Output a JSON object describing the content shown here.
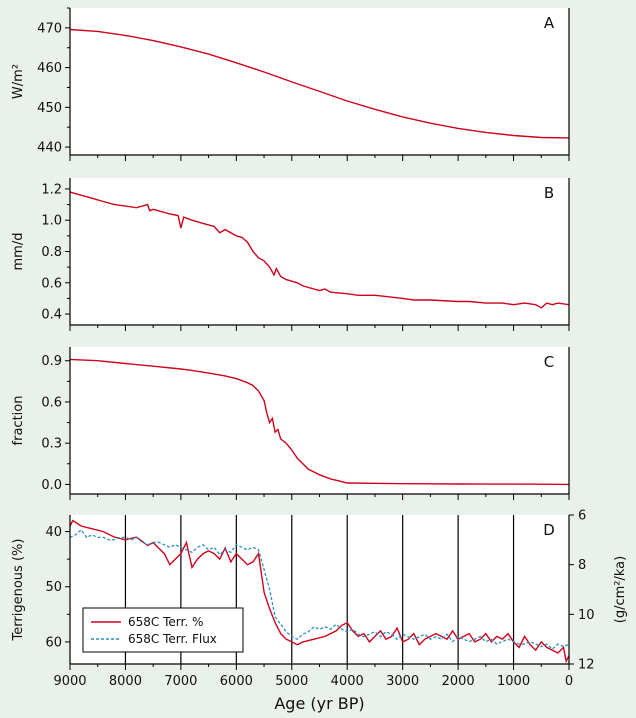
{
  "chart_data": [
    {
      "type": "line",
      "panel": "A",
      "ylabel": "W/m²",
      "ylim": [
        438,
        475
      ],
      "yticks": [
        440,
        450,
        460,
        470
      ],
      "xlim": [
        9000,
        0
      ],
      "series": [
        {
          "color": "#d0021b",
          "x": [
            9000,
            8500,
            8000,
            7500,
            7000,
            6500,
            6000,
            5500,
            5000,
            4500,
            4000,
            3500,
            3000,
            2500,
            2000,
            1500,
            1000,
            500,
            0
          ],
          "y": [
            469.6,
            469.1,
            468.1,
            466.8,
            465.2,
            463.4,
            461.2,
            458.9,
            456.4,
            454.0,
            451.6,
            449.5,
            447.6,
            446.0,
            444.7,
            443.7,
            442.9,
            442.4,
            442.3
          ]
        }
      ]
    },
    {
      "type": "line",
      "panel": "B",
      "ylabel": "mm/d",
      "ylim": [
        0.33,
        1.27
      ],
      "yticks": [
        0.4,
        0.6,
        0.8,
        1.0,
        1.2
      ],
      "ytick_labels": [
        "0.4",
        "0.6",
        "0.8",
        "1.0",
        "1.2"
      ],
      "xlim": [
        9000,
        0
      ],
      "series": [
        {
          "color": "#d0021b",
          "x": [
            9000,
            8800,
            8600,
            8400,
            8200,
            8000,
            7800,
            7600,
            7560,
            7500,
            7400,
            7200,
            7050,
            7000,
            6950,
            6800,
            6600,
            6400,
            6300,
            6200,
            6000,
            5900,
            5800,
            5700,
            5600,
            5500,
            5400,
            5320,
            5280,
            5200,
            5100,
            5000,
            4900,
            4800,
            4700,
            4600,
            4500,
            4400,
            4300,
            4000,
            3800,
            3500,
            3000,
            2800,
            2500,
            2000,
            1800,
            1500,
            1200,
            1000,
            800,
            600,
            500,
            400,
            300,
            200,
            0
          ],
          "y": [
            1.18,
            1.16,
            1.14,
            1.12,
            1.1,
            1.09,
            1.08,
            1.1,
            1.06,
            1.07,
            1.06,
            1.04,
            1.03,
            0.95,
            1.02,
            1.0,
            0.98,
            0.96,
            0.92,
            0.94,
            0.9,
            0.89,
            0.86,
            0.8,
            0.76,
            0.74,
            0.7,
            0.65,
            0.69,
            0.64,
            0.62,
            0.61,
            0.6,
            0.58,
            0.57,
            0.56,
            0.55,
            0.56,
            0.54,
            0.53,
            0.52,
            0.52,
            0.5,
            0.49,
            0.49,
            0.48,
            0.48,
            0.47,
            0.47,
            0.46,
            0.47,
            0.46,
            0.44,
            0.47,
            0.46,
            0.47,
            0.46
          ]
        }
      ]
    },
    {
      "type": "line",
      "panel": "C",
      "ylabel": "fraction",
      "ylim": [
        -0.07,
        1.0
      ],
      "yticks": [
        0.0,
        0.3,
        0.6,
        0.9
      ],
      "ytick_labels": [
        "0.0",
        "0.3",
        "0.6",
        "0.9"
      ],
      "xlim": [
        9000,
        0
      ],
      "series": [
        {
          "color": "#d0021b",
          "x": [
            9000,
            8500,
            8000,
            7500,
            7000,
            6800,
            6500,
            6200,
            6000,
            5800,
            5700,
            5600,
            5500,
            5450,
            5400,
            5350,
            5300,
            5250,
            5200,
            5100,
            5000,
            4900,
            4800,
            4700,
            4600,
            4500,
            4300,
            4100,
            4000,
            3500,
            3000,
            2500,
            2000,
            1500,
            1000,
            500,
            0
          ],
          "y": [
            0.91,
            0.9,
            0.88,
            0.86,
            0.84,
            0.83,
            0.81,
            0.79,
            0.77,
            0.74,
            0.72,
            0.68,
            0.61,
            0.52,
            0.45,
            0.48,
            0.38,
            0.4,
            0.33,
            0.3,
            0.25,
            0.19,
            0.15,
            0.11,
            0.09,
            0.07,
            0.04,
            0.02,
            0.01,
            0.008,
            0.005,
            0.004,
            0.003,
            0.002,
            0.002,
            0.001,
            0.0
          ]
        }
      ]
    },
    {
      "type": "line",
      "panel": "D",
      "ylabel": "Terrigenous (%)",
      "ylim": [
        37,
        64
      ],
      "yticks": [
        40,
        50,
        60
      ],
      "y_inverted": true,
      "y2label": "(g/cm²/ka)",
      "y2lim": [
        6,
        12
      ],
      "y2ticks": [
        6,
        8,
        10,
        12
      ],
      "xlabel": "Age (yr BP)",
      "xlim": [
        9000,
        0
      ],
      "xticks": [
        9000,
        8000,
        7000,
        6000,
        5000,
        4000,
        3000,
        2000,
        1000,
        0
      ],
      "vertical_gridlines": [
        8000,
        7000,
        6000,
        5000,
        4000,
        3000,
        2000,
        1000
      ],
      "legend_position": "bottom-left",
      "series": [
        {
          "name": "658C Terr. %",
          "color": "#d0021b",
          "dash": "solid",
          "x": [
            9000,
            8950,
            8800,
            8600,
            8400,
            8200,
            8000,
            7800,
            7600,
            7500,
            7400,
            7300,
            7200,
            7100,
            7000,
            6900,
            6800,
            6700,
            6600,
            6500,
            6400,
            6300,
            6200,
            6100,
            6000,
            5900,
            5800,
            5700,
            5600,
            5500,
            5400,
            5300,
            5200,
            5100,
            5000,
            4900,
            4800,
            4600,
            4400,
            4200,
            4100,
            4000,
            3900,
            3800,
            3700,
            3600,
            3500,
            3400,
            3300,
            3200,
            3100,
            3000,
            2900,
            2800,
            2700,
            2600,
            2500,
            2400,
            2300,
            2200,
            2100,
            2000,
            1900,
            1800,
            1700,
            1600,
            1500,
            1400,
            1300,
            1200,
            1100,
            1000,
            900,
            800,
            700,
            600,
            500,
            400,
            300,
            200,
            100,
            50,
            0
          ],
          "y": [
            39.0,
            38.0,
            39.0,
            39.5,
            40.0,
            41.0,
            41.5,
            41.0,
            42.5,
            42.0,
            43.0,
            44.0,
            46.0,
            45.0,
            44.0,
            42.0,
            46.5,
            45.0,
            44.0,
            43.5,
            44.0,
            45.0,
            43.0,
            45.5,
            44.0,
            45.0,
            46.0,
            45.5,
            44.0,
            51.0,
            54.0,
            56.5,
            58.5,
            59.5,
            60.0,
            60.5,
            60.0,
            59.5,
            59.0,
            58.0,
            57.0,
            56.5,
            58.0,
            59.0,
            58.5,
            60.0,
            59.0,
            58.0,
            59.5,
            59.0,
            57.5,
            60.0,
            59.5,
            58.5,
            60.5,
            59.5,
            59.0,
            58.5,
            59.0,
            59.5,
            58.0,
            59.5,
            59.0,
            58.5,
            60.0,
            59.5,
            58.5,
            60.0,
            59.0,
            59.5,
            58.5,
            60.0,
            61.0,
            59.0,
            60.5,
            61.5,
            60.0,
            61.0,
            61.5,
            62.0,
            61.0,
            63.5,
            62.5
          ]
        },
        {
          "name": "658C Terr. Flux",
          "color": "#2a8ec4",
          "dash": "dotted",
          "x": [
            9000,
            8900,
            8800,
            8700,
            8600,
            8500,
            8400,
            8300,
            8200,
            8100,
            8000,
            7900,
            7800,
            7700,
            7600,
            7500,
            7400,
            7300,
            7200,
            7100,
            7000,
            6900,
            6800,
            6700,
            6600,
            6500,
            6400,
            6300,
            6200,
            6100,
            6000,
            5900,
            5800,
            5700,
            5600,
            5500,
            5400,
            5300,
            5200,
            5100,
            5000,
            4900,
            4800,
            4700,
            4600,
            4500,
            4400,
            4300,
            4200,
            4100,
            4000,
            3900,
            3800,
            3700,
            3600,
            3500,
            3400,
            3300,
            3200,
            3100,
            3000,
            2900,
            2800,
            2700,
            2600,
            2500,
            2400,
            2300,
            2200,
            2100,
            2000,
            1900,
            1800,
            1700,
            1600,
            1500,
            1400,
            1300,
            1200,
            1100,
            1000,
            900,
            800,
            700,
            600,
            500,
            400,
            300,
            200,
            100,
            0
          ],
          "y": [
            6.9,
            6.8,
            6.6,
            6.9,
            6.8,
            6.9,
            6.9,
            7.0,
            7.0,
            6.9,
            6.9,
            7.0,
            6.9,
            7.1,
            7.2,
            7.1,
            7.1,
            7.2,
            7.3,
            7.2,
            7.3,
            7.4,
            7.5,
            7.3,
            7.2,
            7.4,
            7.3,
            7.6,
            7.4,
            7.5,
            7.2,
            7.3,
            7.4,
            7.3,
            7.4,
            8.2,
            9.0,
            10.1,
            10.4,
            10.7,
            10.9,
            11.0,
            10.8,
            10.7,
            10.5,
            10.6,
            10.5,
            10.6,
            10.4,
            10.6,
            10.7,
            10.6,
            10.8,
            10.9,
            10.8,
            10.7,
            10.9,
            10.7,
            10.8,
            11.0,
            10.8,
            10.9,
            11.0,
            10.9,
            10.8,
            11.0,
            10.9,
            11.0,
            10.8,
            11.1,
            10.9,
            11.0,
            11.1,
            11.0,
            10.9,
            11.1,
            11.0,
            11.2,
            11.1,
            11.0,
            11.1,
            11.2,
            11.2,
            11.1,
            11.2,
            11.3,
            11.2,
            11.4,
            11.2,
            11.3,
            11.2
          ]
        }
      ]
    }
  ]
}
